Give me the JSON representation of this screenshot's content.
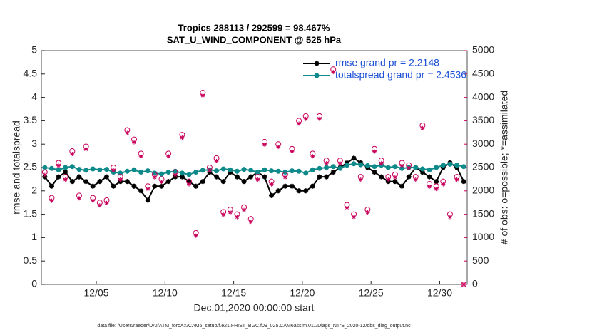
{
  "chart_data": {
    "type": "line",
    "title": "Tropics 288113 / 292599 = 98.467%",
    "subtitle": "SAT_U_WIND_COMPONENT @ 525 hPa",
    "xlabel": "Dec.01,2020 00:00:00 start",
    "ylabel": "rmse and totalspread",
    "y2label": "# of obs: o=possible; *=assimilated",
    "footnote": "data file: /Users/raeder/DAI/ATM_forcXX/CAM6_setup/f.e21.FHIST_BGC.f09_025.CAM6assim.011/Diags_NTrS_2020-12/obs_diag_output.nc",
    "legend": "upper right",
    "xlim": [
      1,
      32
    ],
    "xticks": [
      {
        "value": 5,
        "label": "12/05"
      },
      {
        "value": 10,
        "label": "12/10"
      },
      {
        "value": 15,
        "label": "12/15"
      },
      {
        "value": 20,
        "label": "12/20"
      },
      {
        "value": 25,
        "label": "12/25"
      },
      {
        "value": 30,
        "label": "12/30"
      }
    ],
    "ylim": [
      0,
      5
    ],
    "yticks": [
      0,
      0.5,
      1,
      1.5,
      2,
      2.5,
      3,
      3.5,
      4,
      4.5,
      5
    ],
    "y2lim": [
      0,
      5000
    ],
    "y2ticks": [
      0,
      500,
      1000,
      1500,
      2000,
      2500,
      3000,
      3500,
      4000,
      4500,
      5000
    ],
    "y2color": "#c8005a",
    "x": [
      1.25,
      1.75,
      2.25,
      2.75,
      3.25,
      3.75,
      4.25,
      4.75,
      5.25,
      5.75,
      6.25,
      6.75,
      7.25,
      7.75,
      8.25,
      8.75,
      9.25,
      9.75,
      10.25,
      10.75,
      11.25,
      11.75,
      12.25,
      12.75,
      13.25,
      13.75,
      14.25,
      14.75,
      15.25,
      15.75,
      16.25,
      16.75,
      17.25,
      17.75,
      18.25,
      18.75,
      19.25,
      19.75,
      20.25,
      20.75,
      21.25,
      21.75,
      22.25,
      22.75,
      23.25,
      23.75,
      24.25,
      24.75,
      25.25,
      25.75,
      26.25,
      26.75,
      27.25,
      27.75,
      28.25,
      28.75,
      29.25,
      29.75,
      30.25,
      30.75,
      31.25,
      31.75
    ],
    "series": [
      {
        "name": "rmse grand pr = 2.2148",
        "color": "#000000",
        "marker": "star",
        "values": [
          2.3,
          2.1,
          2.3,
          2.4,
          2.2,
          2.3,
          2.2,
          2.1,
          2.2,
          2.3,
          2.1,
          2.2,
          2.2,
          2.1,
          2.0,
          1.8,
          2.1,
          2.1,
          2.2,
          2.3,
          2.3,
          2.2,
          2.1,
          2.2,
          2.4,
          2.3,
          2.2,
          2.4,
          2.3,
          2.2,
          2.3,
          2.4,
          2.3,
          1.9,
          2.0,
          2.1,
          2.1,
          2.0,
          2.0,
          2.1,
          2.3,
          2.3,
          2.4,
          2.5,
          2.6,
          2.7,
          2.6,
          2.5,
          2.4,
          2.3,
          2.2,
          2.2,
          2.1,
          2.3,
          2.5,
          2.4,
          2.3,
          2.2,
          2.5,
          2.6,
          2.5,
          2.2
        ]
      },
      {
        "name": "totalspread grand pr = 2.4536",
        "color": "#0f8a8a",
        "marker": "dot",
        "values": [
          2.5,
          2.48,
          2.45,
          2.5,
          2.52,
          2.46,
          2.44,
          2.47,
          2.45,
          2.46,
          2.4,
          2.38,
          2.42,
          2.45,
          2.4,
          2.43,
          2.38,
          2.36,
          2.4,
          2.42,
          2.38,
          2.35,
          2.4,
          2.44,
          2.45,
          2.43,
          2.47,
          2.45,
          2.42,
          2.46,
          2.44,
          2.4,
          2.45,
          2.43,
          2.42,
          2.4,
          2.43,
          2.42,
          2.38,
          2.45,
          2.48,
          2.5,
          2.52,
          2.48,
          2.55,
          2.58,
          2.56,
          2.54,
          2.52,
          2.55,
          2.5,
          2.52,
          2.48,
          2.5,
          2.5,
          2.47,
          2.45,
          2.5,
          2.55,
          2.57,
          2.55,
          2.52
        ]
      },
      {
        "axis": "y2",
        "color": "#c8005a",
        "marker": "circle",
        "values": [
          2400,
          1850,
          2600,
          2300,
          2850,
          1900,
          2950,
          1850,
          1750,
          1800,
          2500,
          2300,
          3300,
          3100,
          2800,
          2100,
          2350,
          2250,
          2800,
          2400,
          3200,
          2200,
          1100,
          4100,
          2500,
          2700,
          1550,
          1600,
          1500,
          1650,
          1400,
          2300,
          3050,
          2200,
          3000,
          2350,
          2900,
          3500,
          3600,
          2800,
          3600,
          2650,
          4600,
          2650,
          1700,
          1500,
          2300,
          1600,
          2900,
          2650,
          2300,
          2350,
          2600,
          2550,
          2300,
          3400,
          2150,
          2100,
          2200,
          1500,
          2300,
          0
        ]
      },
      {
        "axis": "y2",
        "color": "#c8005a",
        "marker": "asterisk",
        "values": [
          2340,
          1790,
          2540,
          2240,
          2790,
          1840,
          2890,
          1790,
          1690,
          1740,
          2440,
          2240,
          3240,
          3040,
          2740,
          2040,
          2290,
          2190,
          2740,
          2340,
          3140,
          2140,
          1040,
          4040,
          2440,
          2640,
          1490,
          1540,
          1440,
          1590,
          1340,
          2240,
          2990,
          2140,
          2940,
          2290,
          2840,
          3440,
          3540,
          2740,
          3540,
          2590,
          4540,
          2590,
          1640,
          1440,
          2240,
          1540,
          2840,
          2590,
          2240,
          2290,
          2540,
          2490,
          2240,
          3340,
          2090,
          2040,
          2140,
          1440,
          2240,
          0
        ]
      }
    ]
  }
}
